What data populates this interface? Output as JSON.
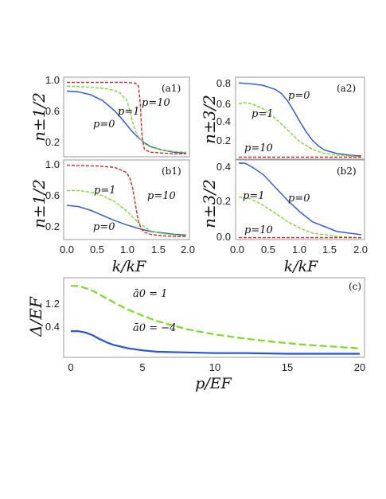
{
  "chart_data": [
    {
      "type": "line",
      "panel": "(a1)",
      "ylabel": "n±1/2",
      "xlabel": "",
      "xlim": [
        0,
        2.0
      ],
      "ylim": [
        0,
        1.05
      ],
      "xticks": [
        "0.0",
        "0.5",
        "1.0",
        "1.5",
        "2.0"
      ],
      "yticks": [
        "0.2",
        "0.6",
        "1.0"
      ],
      "series": [
        {
          "name": "p=0",
          "color": "#2255dd",
          "dash": "solid",
          "x": [
            0,
            0.2,
            0.4,
            0.6,
            0.8,
            0.9,
            1.0,
            1.1,
            1.2,
            1.3,
            1.4,
            1.6,
            1.8,
            2.0
          ],
          "y": [
            0.88,
            0.87,
            0.83,
            0.75,
            0.61,
            0.52,
            0.42,
            0.32,
            0.24,
            0.17,
            0.12,
            0.07,
            0.04,
            0.03
          ]
        },
        {
          "name": "p=1",
          "color": "#77dd22",
          "dash": "dashed",
          "x": [
            0,
            0.3,
            0.6,
            0.8,
            0.9,
            1.0,
            1.05,
            1.1,
            1.15,
            1.2,
            1.3,
            1.4,
            1.6,
            1.8,
            2.0
          ],
          "y": [
            0.95,
            0.94,
            0.92,
            0.89,
            0.85,
            0.76,
            0.62,
            0.46,
            0.33,
            0.25,
            0.16,
            0.11,
            0.07,
            0.05,
            0.04
          ]
        },
        {
          "name": "p=10",
          "color": "#dd2222",
          "dash": "dashed",
          "x": [
            0,
            0.5,
            1.0,
            1.15,
            1.2,
            1.23,
            1.26,
            1.3,
            1.4,
            1.6,
            1.8,
            2.0
          ],
          "y": [
            1.0,
            1.0,
            1.0,
            0.99,
            0.95,
            0.7,
            0.25,
            0.08,
            0.04,
            0.03,
            0.02,
            0.02
          ]
        }
      ]
    },
    {
      "type": "line",
      "panel": "(a2)",
      "ylabel": "n±3/2",
      "xlabel": "",
      "xlim": [
        0,
        2.0
      ],
      "ylim": [
        0,
        0.95
      ],
      "xticks": [
        "0.0",
        "0.5",
        "1.0",
        "1.5",
        "2.0"
      ],
      "yticks": [
        "0.2",
        "0.4",
        "0.6",
        "0.8"
      ],
      "series": [
        {
          "name": "p=0",
          "color": "#2255dd",
          "dash": "solid",
          "x": [
            0,
            0.2,
            0.4,
            0.6,
            0.7,
            0.8,
            0.9,
            1.0,
            1.1,
            1.2,
            1.3,
            1.4,
            1.6,
            1.8,
            2.0
          ],
          "y": [
            0.9,
            0.89,
            0.87,
            0.82,
            0.77,
            0.68,
            0.56,
            0.43,
            0.31,
            0.21,
            0.14,
            0.09,
            0.05,
            0.03,
            0.02
          ]
        },
        {
          "name": "p=1",
          "color": "#77dd22",
          "dash": "dashed",
          "x": [
            0,
            0.1,
            0.2,
            0.4,
            0.6,
            0.8,
            1.0,
            1.2,
            1.4,
            1.6,
            1.8,
            2.0
          ],
          "y": [
            0.65,
            0.66,
            0.65,
            0.59,
            0.47,
            0.33,
            0.19,
            0.1,
            0.05,
            0.03,
            0.02,
            0.01
          ]
        },
        {
          "name": "p=10",
          "color": "#dd2222",
          "dash": "dashed",
          "x": [
            0,
            2.0
          ],
          "y": [
            0.005,
            0.005
          ]
        }
      ]
    },
    {
      "type": "line",
      "panel": "(b1)",
      "ylabel": "n±1/2",
      "xlabel": "k/kF",
      "xlim": [
        0,
        2.0
      ],
      "ylim": [
        0,
        1.05
      ],
      "xticks": [
        "0.0",
        "0.5",
        "1.0",
        "1.5",
        "2.0"
      ],
      "yticks": [
        "0.2",
        "0.6",
        "1.0"
      ],
      "series": [
        {
          "name": "p=0",
          "color": "#2255dd",
          "dash": "solid",
          "x": [
            0,
            0.2,
            0.4,
            0.6,
            0.8,
            1.0,
            1.2,
            1.4,
            1.6,
            1.8,
            2.0
          ],
          "y": [
            0.45,
            0.43,
            0.38,
            0.31,
            0.24,
            0.18,
            0.13,
            0.09,
            0.07,
            0.05,
            0.04
          ]
        },
        {
          "name": "p=1",
          "color": "#77dd22",
          "dash": "dashed",
          "x": [
            0,
            0.2,
            0.4,
            0.6,
            0.8,
            1.0,
            1.1,
            1.2,
            1.3,
            1.4,
            1.6,
            1.8,
            2.0
          ],
          "y": [
            0.65,
            0.65,
            0.63,
            0.58,
            0.5,
            0.37,
            0.29,
            0.21,
            0.15,
            0.1,
            0.06,
            0.04,
            0.03
          ]
        },
        {
          "name": "p=10",
          "color": "#dd2222",
          "dash": "dashed",
          "x": [
            0,
            0.5,
            0.8,
            1.0,
            1.05,
            1.1,
            1.15,
            1.2,
            1.25,
            1.3,
            1.4,
            1.6,
            1.8,
            2.0
          ],
          "y": [
            1.0,
            0.99,
            0.97,
            0.9,
            0.83,
            0.7,
            0.45,
            0.22,
            0.12,
            0.08,
            0.05,
            0.03,
            0.02,
            0.02
          ]
        }
      ]
    },
    {
      "type": "line",
      "panel": "(b2)",
      "ylabel": "n±3/2",
      "xlabel": "k/kF",
      "xlim": [
        0,
        2.0
      ],
      "ylim": [
        0,
        0.47
      ],
      "xticks": [
        "0.0",
        "0.5",
        "1.0",
        "1.5",
        "2.0"
      ],
      "yticks": [
        "0.0",
        "0.2",
        "0.4"
      ],
      "series": [
        {
          "name": "p=0",
          "color": "#2255dd",
          "dash": "solid",
          "x": [
            0,
            0.1,
            0.2,
            0.4,
            0.6,
            0.8,
            1.0,
            1.2,
            1.4,
            1.6,
            1.8,
            2.0
          ],
          "y": [
            0.46,
            0.46,
            0.44,
            0.39,
            0.31,
            0.23,
            0.16,
            0.1,
            0.07,
            0.04,
            0.03,
            0.02
          ]
        },
        {
          "name": "p=1",
          "color": "#77dd22",
          "dash": "dashed",
          "x": [
            0,
            0.1,
            0.2,
            0.4,
            0.6,
            0.8,
            1.0,
            1.2,
            1.4,
            1.6,
            1.8,
            2.0
          ],
          "y": [
            0.25,
            0.25,
            0.24,
            0.2,
            0.15,
            0.1,
            0.06,
            0.03,
            0.02,
            0.01,
            0.005,
            0.0
          ]
        },
        {
          "name": "p=10",
          "color": "#dd2222",
          "dash": "dashed",
          "x": [
            0,
            2.0
          ],
          "y": [
            0.002,
            0.002
          ]
        }
      ]
    },
    {
      "type": "line",
      "panel": "(c)",
      "ylabel": "Δ/EF",
      "xlabel": "p/EF",
      "xlim": [
        0,
        20
      ],
      "ylim": [
        0.1,
        1.25
      ],
      "xticks": [
        "0",
        "5",
        "10",
        "15",
        "20"
      ],
      "yticks": [
        "0.4",
        "1.2"
      ],
      "series": [
        {
          "name": "ā0 = 1",
          "color": "#77dd22",
          "dash": "dashed",
          "x": [
            0,
            0.5,
            1,
            1.5,
            2,
            3,
            4,
            5,
            6,
            8,
            10,
            12,
            14,
            16,
            18,
            20
          ],
          "y": [
            1.15,
            1.15,
            1.12,
            1.08,
            1.02,
            0.9,
            0.79,
            0.7,
            0.62,
            0.5,
            0.42,
            0.36,
            0.31,
            0.27,
            0.24,
            0.21
          ]
        },
        {
          "name": "ā0 = −4",
          "color": "#2255dd",
          "dash": "solid",
          "x": [
            0,
            0.5,
            1,
            1.5,
            2,
            2.5,
            3,
            4,
            5,
            6,
            8,
            10,
            12,
            15,
            20
          ],
          "y": [
            0.47,
            0.47,
            0.45,
            0.41,
            0.35,
            0.3,
            0.26,
            0.21,
            0.18,
            0.16,
            0.15,
            0.14,
            0.14,
            0.13,
            0.13
          ]
        }
      ]
    }
  ]
}
